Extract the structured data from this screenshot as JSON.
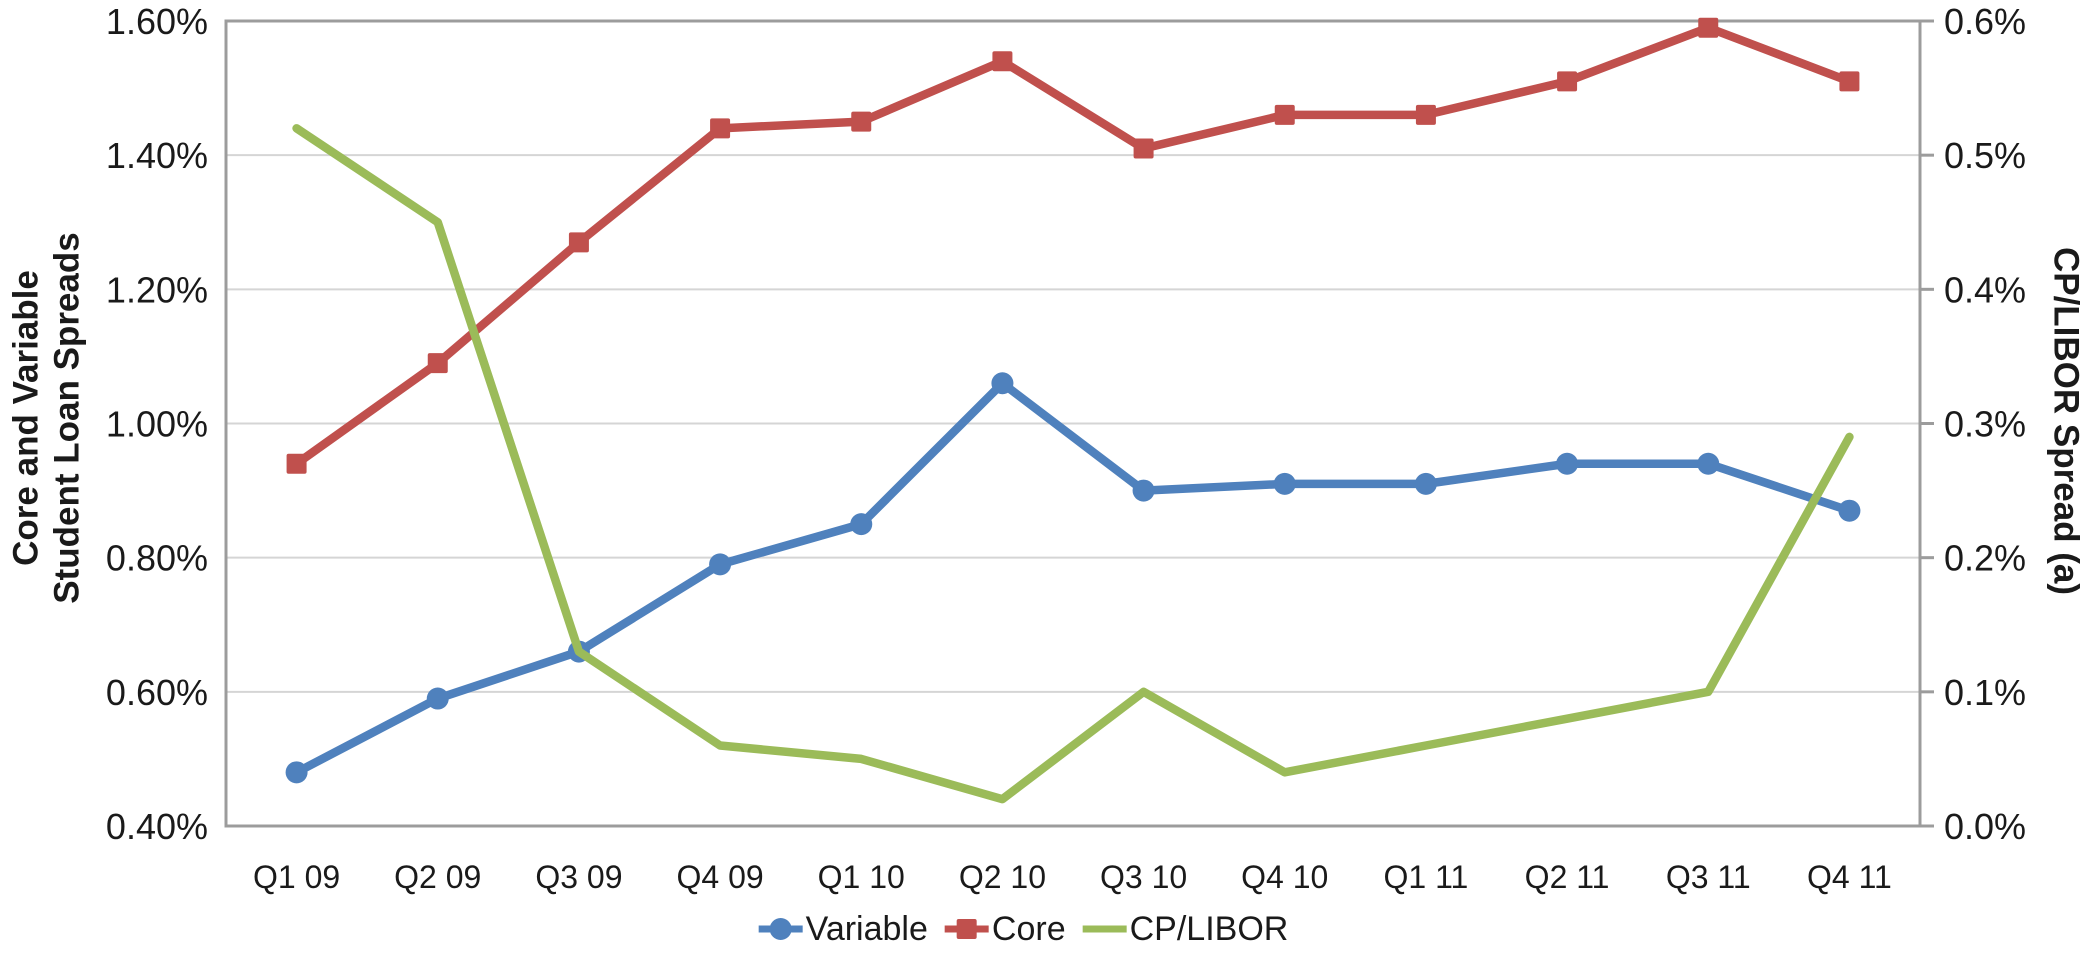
{
  "chart_data": {
    "type": "line",
    "title": "",
    "categories": [
      "Q1 09",
      "Q2 09",
      "Q3 09",
      "Q4 09",
      "Q1 10",
      "Q2 10",
      "Q3 10",
      "Q4 10",
      "Q1 11",
      "Q2 11",
      "Q3 11",
      "Q4 11"
    ],
    "series": [
      {
        "name": "Variable",
        "axis": "left",
        "marker": "circle",
        "color": "#4F81BD",
        "values": [
          0.48,
          0.59,
          0.66,
          0.79,
          0.85,
          1.06,
          0.9,
          0.91,
          0.91,
          0.94,
          0.94,
          0.87
        ]
      },
      {
        "name": "Core",
        "axis": "left",
        "marker": "square",
        "color": "#C0504D",
        "values": [
          0.94,
          1.09,
          1.27,
          1.44,
          1.45,
          1.54,
          1.41,
          1.46,
          1.46,
          1.51,
          1.59,
          1.51
        ]
      },
      {
        "name": "CP/LIBOR",
        "axis": "right",
        "marker": "none",
        "color": "#9BBB59",
        "values": [
          0.52,
          0.45,
          0.13,
          0.06,
          0.05,
          0.02,
          0.1,
          0.04,
          0.06,
          0.08,
          0.1,
          0.29
        ]
      }
    ],
    "left_axis": {
      "title_lines": [
        "Core and Variable",
        "Student Loan Spreads"
      ],
      "min": 0.4,
      "max": 1.6,
      "step": 0.2,
      "tick_labels": [
        "0.40%",
        "0.60%",
        "0.80%",
        "1.00%",
        "1.20%",
        "1.40%",
        "1.60%"
      ]
    },
    "right_axis": {
      "title": "CP/LIBOR Spread (a)",
      "min": 0.0,
      "max": 0.6,
      "step": 0.1,
      "tick_labels": [
        "0.0%",
        "0.1%",
        "0.2%",
        "0.3%",
        "0.4%",
        "0.5%",
        "0.6%"
      ]
    },
    "grid": true,
    "legend_position": "bottom",
    "legend_items": [
      "Variable",
      "Core",
      "CP/LIBOR"
    ]
  },
  "colors": {
    "variable": "#4F81BD",
    "core": "#C0504D",
    "cp_libor": "#9BBB59",
    "gridline": "#D5D5D5",
    "axis_frame": "#9C9C9C",
    "text": "#1A1A1A",
    "background": "#FFFFFF"
  }
}
